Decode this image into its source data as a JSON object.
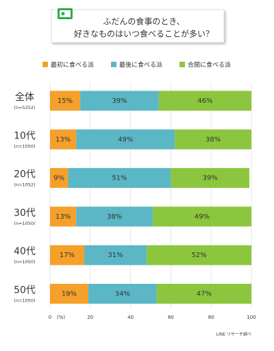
{
  "chart_data": {
    "type": "stacked-bar-horizontal",
    "title": [
      "ふだんの食事のとき、",
      "好きなものはいつ食べることが多い？"
    ],
    "categories": [
      "全体",
      "10代",
      "20代",
      "30代",
      "40代",
      "50代"
    ],
    "sample_sizes": [
      "(n=5252)",
      "(n=1050)",
      "(n=1052)",
      "(n=1050)",
      "(n=1050)",
      "(n=1050)"
    ],
    "series": [
      {
        "name": "最初に食べる派",
        "color": "#f5a02a",
        "values": [
          15,
          13,
          9,
          13,
          17,
          19
        ],
        "value_labels": [
          "15%",
          "13%",
          "9%",
          "13%",
          "17%",
          "19%"
        ]
      },
      {
        "name": "最後に食べる派",
        "color": "#5bb7c5",
        "values": [
          39,
          49,
          51,
          38,
          31,
          34
        ],
        "value_labels": [
          "39%",
          "49%",
          "51%",
          "38%",
          "31%",
          "34%"
        ]
      },
      {
        "name": "合間に食べる派",
        "color": "#8cc63e",
        "values": [
          46,
          38,
          39,
          49,
          52,
          47
        ],
        "value_labels": [
          "46%",
          "38%",
          "39%",
          "49%",
          "52%",
          "47%"
        ]
      }
    ],
    "xlim": [
      0,
      100
    ],
    "xticks": [
      0,
      20,
      40,
      60,
      80,
      100
    ],
    "x_unit_label": "(%)",
    "grid": true,
    "source": "LINE リサーチ調べ"
  }
}
